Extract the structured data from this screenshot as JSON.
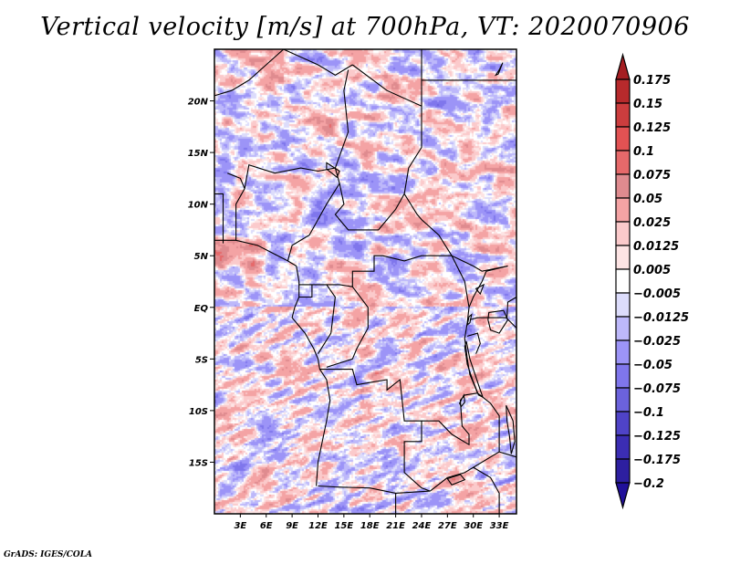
{
  "chart_data": {
    "type": "heatmap",
    "title": "Vertical velocity [m/s] at 700hPa, VT: 2020070906",
    "variable": "Vertical velocity",
    "units": "m/s",
    "level": "700hPa",
    "valid_time": "2020070906",
    "projection": "lat-lon",
    "xlim": [
      0,
      35
    ],
    "ylim": [
      -20,
      25
    ],
    "x_ticks": [
      {
        "value": 3,
        "label": "3E"
      },
      {
        "value": 6,
        "label": "6E"
      },
      {
        "value": 9,
        "label": "9E"
      },
      {
        "value": 12,
        "label": "12E"
      },
      {
        "value": 15,
        "label": "15E"
      },
      {
        "value": 18,
        "label": "18E"
      },
      {
        "value": 21,
        "label": "21E"
      },
      {
        "value": 24,
        "label": "24E"
      },
      {
        "value": 27,
        "label": "27E"
      },
      {
        "value": 30,
        "label": "30E"
      },
      {
        "value": 33,
        "label": "33E"
      }
    ],
    "y_ticks": [
      {
        "value": 20,
        "label": "20N"
      },
      {
        "value": 15,
        "label": "15N"
      },
      {
        "value": 10,
        "label": "10N"
      },
      {
        "value": 5,
        "label": "5N"
      },
      {
        "value": 0,
        "label": "EQ"
      },
      {
        "value": -5,
        "label": "5S"
      },
      {
        "value": -10,
        "label": "10S"
      },
      {
        "value": -15,
        "label": "15S"
      }
    ],
    "colorbar": {
      "levels": [
        0.175,
        0.15,
        0.125,
        0.1,
        0.075,
        0.05,
        0.025,
        0.0125,
        0.005,
        -0.005,
        -0.0125,
        -0.025,
        -0.05,
        -0.075,
        -0.1,
        -0.125,
        -0.175,
        -0.2
      ],
      "labels": [
        "0.175",
        "0.15",
        "0.125",
        "0.1",
        "0.075",
        "0.05",
        "0.025",
        "0.0125",
        "0.005",
        "−0.005",
        "−0.0125",
        "−0.025",
        "−0.05",
        "−0.075",
        "−0.1",
        "−0.125",
        "−0.175",
        "−0.2"
      ],
      "colors_top_to_bottom": [
        "#a51e22",
        "#b72a2c",
        "#cc3d3e",
        "#e25253",
        "#e6696a",
        "#df8b8f",
        "#f4a3a4",
        "#fbcacb",
        "#fde4e4",
        "#ffffff",
        "#dcdcfb",
        "#bdb8fa",
        "#9c94f7",
        "#7f76ec",
        "#6b62dc",
        "#4f43c7",
        "#3b2db3",
        "#2d1fa0",
        "#21109a"
      ],
      "extend": "both",
      "orientation": "vertical",
      "placement": "right"
    },
    "field_description": "Noisy mesoscale field of mixed ascent (red) and descent (blue) over Central Africa; strongest positive values near the Gulf of Guinea coast (~5N, 0-5E) and along a band near 17-18N; stronger negative values scattered in Sahel and northeast",
    "borders_lonlat": [
      [
        [
          0,
          20.5
        ],
        [
          2,
          21
        ],
        [
          4,
          22
        ],
        [
          6,
          23.5
        ],
        [
          8,
          25
        ]
      ],
      [
        [
          8,
          25
        ],
        [
          12,
          23.5
        ],
        [
          14,
          22.5
        ],
        [
          16,
          23.5
        ]
      ],
      [
        [
          16,
          23.5
        ],
        [
          20,
          21
        ],
        [
          24,
          19.5
        ],
        [
          24,
          15.5
        ],
        [
          22.5,
          13.5
        ],
        [
          22,
          11
        ],
        [
          23.5,
          9
        ],
        [
          24,
          8.5
        ],
        [
          26,
          7
        ],
        [
          27.5,
          5
        ],
        [
          30,
          4
        ],
        [
          31,
          3.5
        ],
        [
          34,
          4
        ]
      ],
      [
        [
          24,
          19.5
        ],
        [
          24,
          25
        ]
      ],
      [
        [
          24,
          22
        ],
        [
          35,
          22
        ]
      ],
      [
        [
          15.5,
          23
        ],
        [
          15,
          21
        ],
        [
          15.5,
          17
        ],
        [
          14,
          13.5
        ],
        [
          14.5,
          12
        ],
        [
          15,
          10
        ],
        [
          14,
          9
        ],
        [
          15.5,
          7.5
        ],
        [
          19,
          7.5
        ],
        [
          21,
          9.5
        ],
        [
          22,
          11
        ]
      ],
      [
        [
          14,
          13.5
        ],
        [
          12,
          13.2
        ],
        [
          10,
          13.5
        ],
        [
          7,
          13
        ],
        [
          4,
          13.8
        ],
        [
          3.5,
          11.5
        ],
        [
          2.5,
          10
        ],
        [
          2.5,
          6.5
        ],
        [
          0,
          6.5
        ]
      ],
      [
        [
          3.5,
          11.5
        ],
        [
          3,
          12.5
        ],
        [
          1.5,
          13
        ]
      ],
      [
        [
          0,
          11
        ],
        [
          1,
          11
        ],
        [
          1,
          6.2
        ]
      ],
      [
        [
          2.5,
          6.5
        ],
        [
          5,
          6
        ],
        [
          8.5,
          4.5
        ],
        [
          9.5,
          4
        ]
      ],
      [
        [
          8.5,
          4.5
        ],
        [
          9,
          6
        ],
        [
          11,
          7
        ],
        [
          12,
          8.5
        ],
        [
          13,
          10
        ],
        [
          14.5,
          12
        ]
      ],
      [
        [
          9.5,
          4
        ],
        [
          9.8,
          2.5
        ],
        [
          9.8,
          1
        ],
        [
          9.3,
          0
        ],
        [
          9,
          -1
        ],
        [
          10.5,
          -2.5
        ],
        [
          11.5,
          -4
        ],
        [
          12,
          -5
        ],
        [
          12.2,
          -6
        ],
        [
          13,
          -7
        ],
        [
          13.4,
          -9
        ],
        [
          13,
          -11
        ],
        [
          12.5,
          -13
        ],
        [
          12,
          -15
        ],
        [
          11.8,
          -17.3
        ]
      ],
      [
        [
          9.8,
          2.2
        ],
        [
          11.5,
          2.2
        ],
        [
          13,
          2.2
        ],
        [
          14.5,
          2.2
        ],
        [
          16,
          2
        ],
        [
          16,
          3.5
        ],
        [
          18.5,
          3.5
        ],
        [
          18.5,
          5
        ],
        [
          19.5,
          5
        ],
        [
          22,
          4.5
        ],
        [
          24,
          5
        ],
        [
          26,
          5
        ],
        [
          27.5,
          5
        ]
      ],
      [
        [
          11.3,
          2.2
        ],
        [
          11.3,
          1
        ],
        [
          9.8,
          1
        ]
      ],
      [
        [
          13,
          2.2
        ],
        [
          14,
          1
        ],
        [
          13.5,
          -2.5
        ],
        [
          12,
          -4.5
        ]
      ],
      [
        [
          16,
          2
        ],
        [
          17.8,
          0
        ],
        [
          17.8,
          -2
        ],
        [
          16.5,
          -4
        ],
        [
          16,
          -5
        ],
        [
          13,
          -5.8
        ]
      ],
      [
        [
          12.2,
          -6
        ],
        [
          16,
          -6
        ],
        [
          16.5,
          -7.5
        ],
        [
          20,
          -7
        ],
        [
          20,
          -8
        ],
        [
          21.5,
          -7
        ],
        [
          22,
          -11
        ],
        [
          24,
          -11
        ],
        [
          24,
          -13
        ],
        [
          22,
          -13
        ],
        [
          22,
          -16
        ],
        [
          24,
          -17.5
        ],
        [
          25,
          -17.8
        ]
      ],
      [
        [
          12,
          -17.3
        ],
        [
          14,
          -17.4
        ],
        [
          18,
          -17.5
        ],
        [
          21,
          -18
        ],
        [
          25,
          -17.8
        ]
      ],
      [
        [
          21,
          -18
        ],
        [
          21,
          -20
        ]
      ],
      [
        [
          25,
          -17.8
        ],
        [
          27,
          -16.5
        ],
        [
          29,
          -16
        ],
        [
          30,
          -15.5
        ],
        [
          33,
          -14
        ],
        [
          33,
          -10.5
        ],
        [
          32,
          -9.3
        ],
        [
          30.5,
          -8.3
        ],
        [
          29,
          -8.5
        ],
        [
          28.5,
          -9
        ],
        [
          28.7,
          -11.5
        ],
        [
          29.5,
          -12.3
        ],
        [
          29.5,
          -13.3
        ],
        [
          27.5,
          -12.3
        ],
        [
          26,
          -11
        ],
        [
          24,
          -11
        ]
      ],
      [
        [
          33,
          -14
        ],
        [
          35,
          -14.5
        ]
      ],
      [
        [
          30,
          -15.5
        ],
        [
          32,
          -16.5
        ],
        [
          33,
          -18
        ],
        [
          33,
          -20
        ]
      ],
      [
        [
          27.5,
          5
        ],
        [
          29,
          2.5
        ],
        [
          29.5,
          0
        ],
        [
          29.3,
          -1.5
        ],
        [
          29,
          -3
        ],
        [
          29.3,
          -5
        ],
        [
          29.6,
          -6.5
        ],
        [
          30.5,
          -8.3
        ]
      ],
      [
        [
          29.5,
          0
        ],
        [
          30,
          1
        ],
        [
          31,
          2.5
        ],
        [
          31.5,
          3.5
        ],
        [
          34,
          4
        ]
      ],
      [
        [
          29.6,
          -1.2
        ],
        [
          30.5,
          -1
        ],
        [
          33.9,
          -1
        ],
        [
          34,
          0.5
        ],
        [
          35,
          1
        ]
      ],
      [
        [
          29.3,
          -2.8
        ],
        [
          30.5,
          -2.5
        ],
        [
          30.8,
          -3.5
        ],
        [
          30.3,
          -4.5
        ]
      ],
      [
        [
          33.8,
          -1
        ],
        [
          35,
          -2
        ]
      ]
    ],
    "lakes_lonlat": [
      [
        [
          29.2,
          -3.3
        ],
        [
          29.6,
          -5
        ],
        [
          30.2,
          -6.5
        ],
        [
          30.8,
          -8
        ],
        [
          31.1,
          -8.7
        ],
        [
          30.6,
          -8.5
        ],
        [
          29.9,
          -7
        ],
        [
          29.3,
          -5.5
        ],
        [
          29,
          -3.8
        ],
        [
          29.2,
          -3.3
        ]
      ],
      [
        [
          31.8,
          -0.5
        ],
        [
          33.5,
          -0.3
        ],
        [
          34,
          -1.2
        ],
        [
          33,
          -2.5
        ],
        [
          32,
          -2.2
        ],
        [
          31.7,
          -1.2
        ],
        [
          31.8,
          -0.5
        ]
      ],
      [
        [
          29.8,
          -0.7
        ],
        [
          29.6,
          -1.5
        ],
        [
          29.3,
          -1.7
        ],
        [
          29.5,
          -0.9
        ],
        [
          29.8,
          -0.7
        ]
      ],
      [
        [
          30.3,
          1.8
        ],
        [
          31.2,
          2.2
        ],
        [
          30.8,
          1.3
        ],
        [
          30.3,
          1.8
        ]
      ],
      [
        [
          33.8,
          -9.5
        ],
        [
          34.6,
          -11
        ],
        [
          34.8,
          -13
        ],
        [
          34.4,
          -14.2
        ],
        [
          34.2,
          -12.5
        ],
        [
          33.9,
          -11
        ],
        [
          33.8,
          -9.5
        ]
      ],
      [
        [
          27,
          -16.6
        ],
        [
          28.5,
          -16.2
        ],
        [
          29,
          -16.7
        ],
        [
          27.5,
          -17.2
        ],
        [
          27,
          -16.6
        ]
      ],
      [
        [
          28.4,
          -9.3
        ],
        [
          28.9,
          -8.5
        ],
        [
          29,
          -9.2
        ],
        [
          28.6,
          -9.6
        ],
        [
          28.4,
          -9.3
        ]
      ],
      [
        [
          13,
          14
        ],
        [
          14.5,
          13.2
        ],
        [
          14.2,
          12.6
        ],
        [
          13,
          13.4
        ],
        [
          13,
          14
        ]
      ],
      [
        [
          32.6,
          22.5
        ],
        [
          33,
          23
        ],
        [
          33.4,
          23.7
        ],
        [
          32.9,
          22.6
        ],
        [
          32.6,
          22.5
        ]
      ]
    ]
  },
  "footer": {
    "credit": "GrADS: IGES/COLA"
  }
}
